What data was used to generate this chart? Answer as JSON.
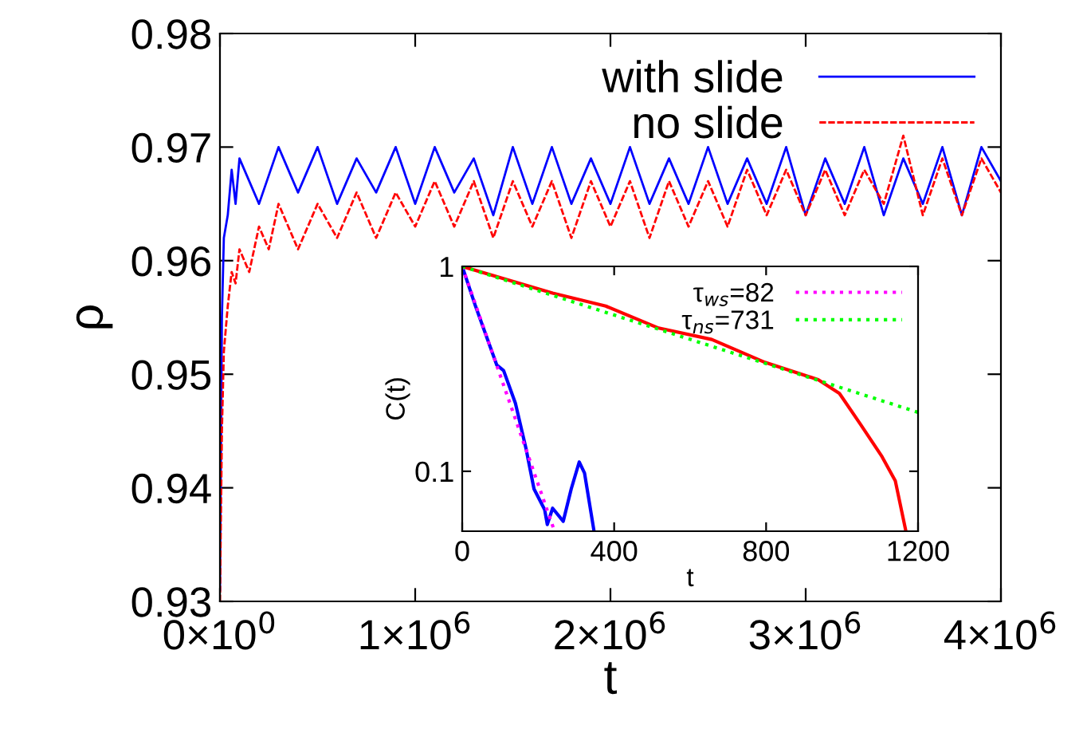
{
  "chart_data": [
    {
      "type": "line",
      "xlabel": "t",
      "ylabel": "ρ",
      "xlim": [
        0,
        4000000
      ],
      "ylim": [
        0.93,
        0.98
      ],
      "xticks": [
        {
          "value": 0,
          "label": "0×10$^{0}$"
        },
        {
          "value": 1000000,
          "label": "1×10$^{6}$"
        },
        {
          "value": 2000000,
          "label": "2×10$^{6}$"
        },
        {
          "value": 3000000,
          "label": "3×10$^{6}$"
        },
        {
          "value": 4000000,
          "label": "4×10$^{6}$"
        }
      ],
      "yticks": [
        0.93,
        0.94,
        0.95,
        0.96,
        0.97,
        0.98
      ],
      "grid": false,
      "legend": "top right",
      "series": [
        {
          "name": "with slide",
          "color": "#0000ff",
          "line_style": "solid",
          "x": [
            0,
            10000,
            20000,
            40000,
            60000,
            80000,
            100000,
            200000,
            300000,
            400000,
            500000,
            600000,
            700000,
            800000,
            900000,
            1000000,
            1100000,
            1200000,
            1300000,
            1400000,
            1500000,
            1600000,
            1700000,
            1800000,
            1900000,
            2000000,
            2100000,
            2200000,
            2300000,
            2400000,
            2500000,
            2600000,
            2700000,
            2800000,
            2900000,
            3000000,
            3100000,
            3200000,
            3300000,
            3400000,
            3500000,
            3600000,
            3700000,
            3800000,
            3900000,
            4000000
          ],
          "values": [
            0.931,
            0.955,
            0.962,
            0.964,
            0.968,
            0.965,
            0.969,
            0.965,
            0.97,
            0.966,
            0.97,
            0.965,
            0.969,
            0.966,
            0.97,
            0.965,
            0.97,
            0.966,
            0.969,
            0.964,
            0.97,
            0.965,
            0.97,
            0.965,
            0.969,
            0.965,
            0.97,
            0.965,
            0.969,
            0.965,
            0.97,
            0.965,
            0.969,
            0.965,
            0.97,
            0.964,
            0.969,
            0.965,
            0.97,
            0.964,
            0.969,
            0.965,
            0.97,
            0.964,
            0.97,
            0.967
          ]
        },
        {
          "name": "no slide",
          "color": "#ff0000",
          "line_style": "dashed",
          "x": [
            0,
            10000,
            20000,
            40000,
            60000,
            80000,
            100000,
            150000,
            200000,
            250000,
            300000,
            400000,
            500000,
            600000,
            700000,
            800000,
            900000,
            1000000,
            1100000,
            1200000,
            1300000,
            1400000,
            1500000,
            1600000,
            1700000,
            1800000,
            1900000,
            2000000,
            2100000,
            2200000,
            2300000,
            2400000,
            2500000,
            2600000,
            2700000,
            2800000,
            2900000,
            3000000,
            3100000,
            3200000,
            3300000,
            3400000,
            3500000,
            3600000,
            3700000,
            3800000,
            3900000,
            4000000
          ],
          "values": [
            0.93,
            0.945,
            0.952,
            0.956,
            0.959,
            0.958,
            0.961,
            0.959,
            0.963,
            0.961,
            0.965,
            0.961,
            0.965,
            0.962,
            0.966,
            0.962,
            0.966,
            0.963,
            0.967,
            0.963,
            0.967,
            0.962,
            0.967,
            0.963,
            0.967,
            0.962,
            0.967,
            0.963,
            0.967,
            0.962,
            0.967,
            0.963,
            0.967,
            0.963,
            0.968,
            0.964,
            0.968,
            0.964,
            0.968,
            0.964,
            0.968,
            0.965,
            0.971,
            0.964,
            0.969,
            0.964,
            0.969,
            0.966
          ]
        }
      ]
    },
    {
      "type": "line",
      "xlabel": "t",
      "ylabel": "C(t)",
      "log": "y",
      "xlim": [
        0,
        1200
      ],
      "ylim": [
        0.051,
        1
      ],
      "xticks": [
        0,
        400,
        800,
        1200
      ],
      "yticks": [
        0.1,
        1
      ],
      "grid": false,
      "legend": "top right",
      "series": [
        {
          "color": "#0000ff",
          "line_style": "solid",
          "x": [
            0,
            35,
            91,
            109,
            140,
            168,
            189,
            217,
            224,
            238,
            266,
            287,
            308,
            322,
            347
          ],
          "values": [
            1,
            0.64,
            0.33,
            0.31,
            0.215,
            0.129,
            0.082,
            0.065,
            0.055,
            0.066,
            0.057,
            0.082,
            0.111,
            0.098,
            0.051
          ]
        },
        {
          "color": "#ff0000",
          "line_style": "solid",
          "x": [
            0,
            238,
            378,
            517,
            657,
            797,
            937,
            993,
            1049,
            1105,
            1140,
            1168
          ],
          "values": [
            1,
            0.74,
            0.64,
            0.5,
            0.44,
            0.34,
            0.28,
            0.24,
            0.169,
            0.118,
            0.09,
            0.051
          ]
        },
        {
          "name": "τ$_{ws}$=82",
          "color": "#ff00ff",
          "line_style": "dotted",
          "x": [
            0,
            243
          ],
          "values": [
            1,
            0.051
          ]
        },
        {
          "name": "τ$_{ns}$=731",
          "color": "#00ff00",
          "line_style": "dotted",
          "x": [
            0,
            1200
          ],
          "values": [
            1,
            0.194
          ]
        }
      ]
    }
  ]
}
